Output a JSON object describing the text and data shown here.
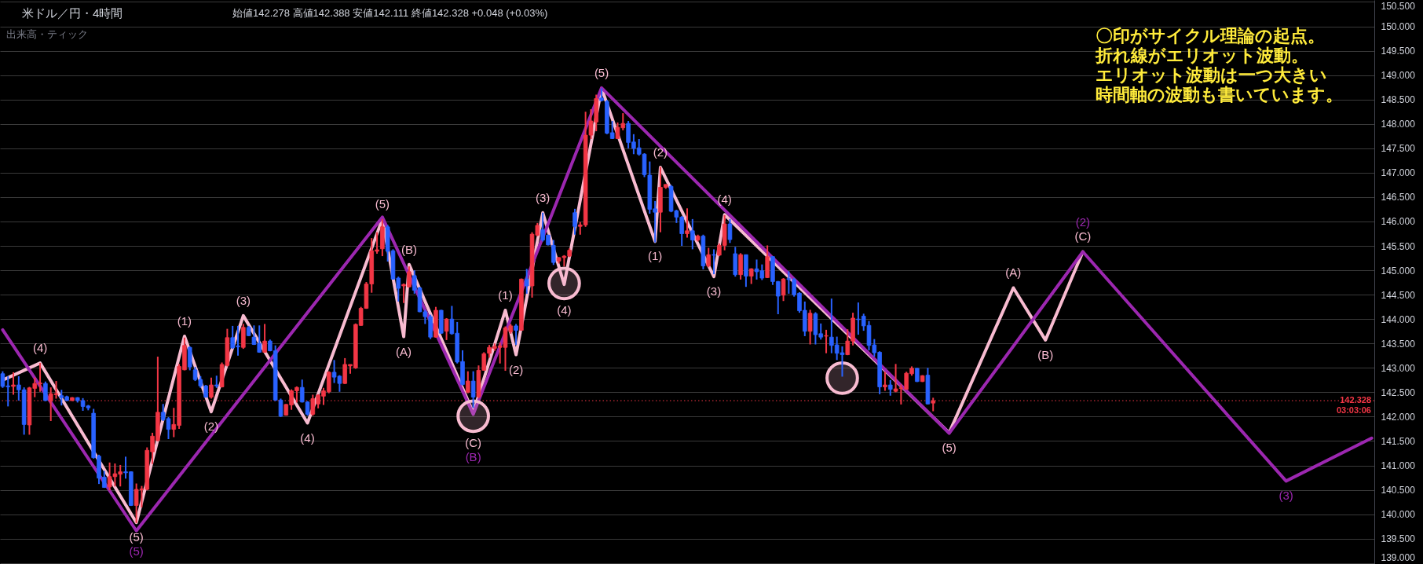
{
  "chart_data": {
    "type": "candlestick",
    "title": "米ドル／円・4時間",
    "subtitle": "始値142.278 高値142.388 安値142.111 終値142.328 +0.048 (+0.03%)",
    "categories": [
      null,
      null,
      null,
      null,
      null,
      null,
      null,
      null,
      null,
      null,
      null,
      null,
      null,
      null,
      null,
      null,
      null,
      null,
      null,
      null,
      null,
      null,
      null,
      null,
      null,
      null,
      null,
      null,
      null,
      null,
      null,
      null,
      null,
      null,
      null,
      null,
      null,
      null,
      null,
      null,
      null,
      null,
      null,
      null,
      null,
      null,
      null,
      null,
      null,
      null,
      null,
      null,
      null,
      null,
      null,
      null,
      null,
      null,
      null,
      null,
      null,
      null,
      null,
      null,
      null,
      null,
      null,
      null,
      null,
      null,
      null,
      null,
      null,
      null,
      null,
      null,
      null,
      null,
      null,
      null,
      null,
      null,
      null,
      null,
      null,
      null,
      null,
      null,
      null,
      null,
      null,
      null,
      null,
      null,
      null,
      null,
      null,
      null,
      null,
      null,
      null,
      null,
      null,
      null,
      null,
      null,
      null,
      null,
      null,
      null,
      null,
      null,
      null,
      null,
      null,
      null,
      null,
      null,
      null,
      null,
      null,
      null,
      null,
      null,
      null,
      null,
      null,
      null,
      null,
      null,
      null,
      null,
      null,
      null,
      null,
      null,
      null,
      null,
      null,
      null,
      null,
      null,
      null,
      null,
      null,
      null,
      null,
      null,
      null,
      null,
      null,
      null,
      null,
      null,
      null,
      null,
      null,
      null,
      null,
      null,
      null,
      null,
      null,
      null,
      null,
      null,
      null,
      null,
      null,
      null,
      null,
      null,
      null,
      null,
      null,
      null,
      null,
      null,
      null,
      null,
      null,
      null,
      null,
      null,
      null,
      null,
      null,
      null,
      null,
      null,
      null,
      null,
      null,
      null,
      null,
      null,
      null,
      null,
      null,
      null,
      null,
      null,
      null,
      null,
      null,
      null,
      null,
      null,
      null,
      null,
      null,
      null,
      null,
      null,
      null,
      null,
      null,
      null,
      null,
      null,
      null,
      null,
      null,
      null,
      null,
      null,
      null,
      null,
      null,
      null,
      null,
      null,
      null,
      null,
      null,
      null,
      null,
      null,
      null,
      null,
      null,
      null,
      null,
      null,
      null,
      null,
      null,
      null,
      null,
      null,
      null,
      null,
      null,
      null,
      null,
      null,
      null
    ],
    "ohlc": [
      [
        142.88,
        142.93,
        142.59,
        142.62
      ],
      [
        142.63,
        142.83,
        142.21,
        142.61
      ],
      [
        142.62,
        142.91,
        142.45,
        142.65
      ],
      [
        142.65,
        142.83,
        142.33,
        142.55
      ],
      [
        142.55,
        142.6,
        141.63,
        141.84
      ],
      [
        141.83,
        142.61,
        141.63,
        142.59
      ],
      [
        142.58,
        142.8,
        142.4,
        142.68
      ],
      [
        142.67,
        143.1,
        142.51,
        142.69
      ],
      [
        142.68,
        142.72,
        142.32,
        142.33
      ],
      [
        142.32,
        142.6,
        141.91,
        142.47
      ],
      [
        142.45,
        142.73,
        142.37,
        142.47
      ],
      [
        142.43,
        142.55,
        142.23,
        142.39
      ],
      [
        142.41,
        142.43,
        142.32,
        142.33
      ],
      [
        142.33,
        142.4,
        142.32,
        142.39
      ],
      [
        142.39,
        142.4,
        142.29,
        142.33
      ],
      [
        142.33,
        142.38,
        142.12,
        142.21
      ],
      [
        142.22,
        142.24,
        142.13,
        142.18
      ],
      [
        142.07,
        142.16,
        141.14,
        141.16
      ],
      [
        141.19,
        141.22,
        140.62,
        140.74
      ],
      [
        140.76,
        140.89,
        140.54,
        140.55
      ],
      [
        140.56,
        141.06,
        140.49,
        140.77
      ],
      [
        140.77,
        141.04,
        140.57,
        140.83
      ],
      [
        140.82,
        141.01,
        140.57,
        140.87
      ],
      [
        140.87,
        141.18,
        140.73,
        140.85
      ],
      [
        140.87,
        140.88,
        140.17,
        140.18
      ],
      [
        140.18,
        140.63,
        139.82,
        140.51
      ],
      [
        140.5,
        140.58,
        140.14,
        140.52
      ],
      [
        140.51,
        141.37,
        140.49,
        141.31
      ],
      [
        141.28,
        141.67,
        141.03,
        141.6
      ],
      [
        141.51,
        143.23,
        141.5,
        142.09
      ],
      [
        142.09,
        142.26,
        141.91,
        141.94
      ],
      [
        141.96,
        141.99,
        141.54,
        141.74
      ],
      [
        141.74,
        142.18,
        141.58,
        141.84
      ],
      [
        141.82,
        143.08,
        141.75,
        143.03
      ],
      [
        142.96,
        143.62,
        142.95,
        143.46
      ],
      [
        143.42,
        143.44,
        142.95,
        143.02
      ],
      [
        142.96,
        143.02,
        142.73,
        142.76
      ],
      [
        142.76,
        142.83,
        142.59,
        142.63
      ],
      [
        142.63,
        142.65,
        142.39,
        142.4
      ],
      [
        142.4,
        142.8,
        142.37,
        142.65
      ],
      [
        142.65,
        142.84,
        142.59,
        142.63
      ],
      [
        142.61,
        143.11,
        142.6,
        143.07
      ],
      [
        143.05,
        143.8,
        143.03,
        143.62
      ],
      [
        143.62,
        143.86,
        143.39,
        143.41
      ],
      [
        143.45,
        143.86,
        143.25,
        143.43
      ],
      [
        143.42,
        143.9,
        143.39,
        143.83
      ],
      [
        143.83,
        143.86,
        143.65,
        143.66
      ],
      [
        143.63,
        143.87,
        143.47,
        143.48
      ],
      [
        143.5,
        143.87,
        143.31,
        143.32
      ],
      [
        143.32,
        143.9,
        143.31,
        143.55
      ],
      [
        143.55,
        143.58,
        143.34,
        143.35
      ],
      [
        143.35,
        143.46,
        142.32,
        142.34
      ],
      [
        142.34,
        142.37,
        141.99,
        142.01
      ],
      [
        142.03,
        142.26,
        142.02,
        142.25
      ],
      [
        142.24,
        142.56,
        142.14,
        142.53
      ],
      [
        142.53,
        142.62,
        142.29,
        142.6
      ],
      [
        142.6,
        142.76,
        142.29,
        142.3
      ],
      [
        142.3,
        142.32,
        142.02,
        142.05
      ],
      [
        142.05,
        142.45,
        142.02,
        142.37
      ],
      [
        142.26,
        142.46,
        142.17,
        142.44
      ],
      [
        142.42,
        142.59,
        142.24,
        142.53
      ],
      [
        142.51,
        142.93,
        142.48,
        142.91
      ],
      [
        142.91,
        143.16,
        142.69,
        142.81
      ],
      [
        142.83,
        142.85,
        142.51,
        142.68
      ],
      [
        142.68,
        143.2,
        142.67,
        143.07
      ],
      [
        143.04,
        143.07,
        142.88,
        143.07
      ],
      [
        143.0,
        143.91,
        142.98,
        143.89
      ],
      [
        143.87,
        144.25,
        143.86,
        144.22
      ],
      [
        144.22,
        144.76,
        144.21,
        144.72
      ],
      [
        144.72,
        145.66,
        144.54,
        145.4
      ],
      [
        145.39,
        145.78,
        145.34,
        145.42
      ],
      [
        145.44,
        146.05,
        145.29,
        145.89
      ],
      [
        145.89,
        145.93,
        145.18,
        145.39
      ],
      [
        145.4,
        145.43,
        144.81,
        144.82
      ],
      [
        144.84,
        144.87,
        144.36,
        144.63
      ],
      [
        144.68,
        144.73,
        144.33,
        144.71
      ],
      [
        144.66,
        145.08,
        144.65,
        144.97
      ],
      [
        144.89,
        145.0,
        144.52,
        144.59
      ],
      [
        144.64,
        144.66,
        144.14,
        144.15
      ],
      [
        144.15,
        144.19,
        143.9,
        144.05
      ],
      [
        144.05,
        144.09,
        143.59,
        143.63
      ],
      [
        143.63,
        144.25,
        143.62,
        144.18
      ],
      [
        144.18,
        144.19,
        143.7,
        143.71
      ],
      [
        143.75,
        144.02,
        143.57,
        144.0
      ],
      [
        144.0,
        144.27,
        143.68,
        143.7
      ],
      [
        143.71,
        143.94,
        143.09,
        143.12
      ],
      [
        143.13,
        143.36,
        142.64,
        142.66
      ],
      [
        142.5,
        142.93,
        142.48,
        142.73
      ],
      [
        142.73,
        142.93,
        142.18,
        142.4
      ],
      [
        142.41,
        143.05,
        142.38,
        142.95
      ],
      [
        142.95,
        143.32,
        142.94,
        143.29
      ],
      [
        143.3,
        143.47,
        143.21,
        143.42
      ],
      [
        143.4,
        143.5,
        143.35,
        143.44
      ],
      [
        143.42,
        143.52,
        143.09,
        143.45
      ],
      [
        143.42,
        143.85,
        142.94,
        143.82
      ],
      [
        143.74,
        143.9,
        143.7,
        143.86
      ],
      [
        143.86,
        143.9,
        143.47,
        143.77
      ],
      [
        143.77,
        144.83,
        143.76,
        144.82
      ],
      [
        144.82,
        145.03,
        144.52,
        144.68
      ],
      [
        144.68,
        145.78,
        144.44,
        145.74
      ],
      [
        145.72,
        145.97,
        145.7,
        145.92
      ],
      [
        145.83,
        146.18,
        145.59,
        145.62
      ],
      [
        145.72,
        145.73,
        145.51,
        145.52
      ],
      [
        145.51,
        145.62,
        145.11,
        145.16
      ],
      [
        145.19,
        145.27,
        145.14,
        145.26
      ],
      [
        145.26,
        145.31,
        145.08,
        145.29
      ],
      [
        145.29,
        145.45,
        145.27,
        145.41
      ],
      [
        146.18,
        146.26,
        145.73,
        145.9
      ],
      [
        145.9,
        145.99,
        145.73,
        145.93
      ],
      [
        145.93,
        148.25,
        145.89,
        147.77
      ],
      [
        147.77,
        148.3,
        147.69,
        148.06
      ],
      [
        148.04,
        148.6,
        147.85,
        148.52
      ],
      [
        148.53,
        148.73,
        148.46,
        148.48
      ],
      [
        148.46,
        148.49,
        147.79,
        147.81
      ],
      [
        147.82,
        148.06,
        147.69,
        147.7
      ],
      [
        147.7,
        148.03,
        147.69,
        147.93
      ],
      [
        147.92,
        148.22,
        147.87,
        148.01
      ],
      [
        148.01,
        148.06,
        147.5,
        147.62
      ],
      [
        147.63,
        147.79,
        147.38,
        147.5
      ],
      [
        147.51,
        147.69,
        147.35,
        147.38
      ],
      [
        147.38,
        147.4,
        146.91,
        146.96
      ],
      [
        146.95,
        147.23,
        146.16,
        146.25
      ],
      [
        146.26,
        146.42,
        145.57,
        146.19
      ],
      [
        146.19,
        147.12,
        145.78,
        146.7
      ],
      [
        146.7,
        146.76,
        146.67,
        146.76
      ],
      [
        146.72,
        146.75,
        146.19,
        146.21
      ],
      [
        146.22,
        146.24,
        145.97,
        146.09
      ],
      [
        146.09,
        146.11,
        145.5,
        145.75
      ],
      [
        145.75,
        146.27,
        145.67,
        145.81
      ],
      [
        145.81,
        146.05,
        145.43,
        145.62
      ],
      [
        145.62,
        145.73,
        145.59,
        145.7
      ],
      [
        145.7,
        145.73,
        145.02,
        145.09
      ],
      [
        145.09,
        145.46,
        145.06,
        145.32
      ],
      [
        145.32,
        145.43,
        144.92,
        145.31
      ],
      [
        145.31,
        145.55,
        145.29,
        145.51
      ],
      [
        145.51,
        146.13,
        145.41,
        145.95
      ],
      [
        145.95,
        146.05,
        145.56,
        145.63
      ],
      [
        145.34,
        145.48,
        144.87,
        144.91
      ],
      [
        144.91,
        145.35,
        144.81,
        145.32
      ],
      [
        145.32,
        145.32,
        144.66,
        144.88
      ],
      [
        144.88,
        145.04,
        144.72,
        145.03
      ],
      [
        145.03,
        145.22,
        144.81,
        144.97
      ],
      [
        144.99,
        145.12,
        144.8,
        144.84
      ],
      [
        144.85,
        145.51,
        144.84,
        145.28
      ],
      [
        145.28,
        145.29,
        144.7,
        144.77
      ],
      [
        144.77,
        144.78,
        144.1,
        144.47
      ],
      [
        144.49,
        144.84,
        144.37,
        144.82
      ],
      [
        144.83,
        144.98,
        144.52,
        144.81
      ],
      [
        144.81,
        144.84,
        144.46,
        144.5
      ],
      [
        144.53,
        144.55,
        144.13,
        144.17
      ],
      [
        144.18,
        144.36,
        143.65,
        143.75
      ],
      [
        143.75,
        144.19,
        143.48,
        144.12
      ],
      [
        144.11,
        144.14,
        143.48,
        143.68
      ],
      [
        143.7,
        143.91,
        143.58,
        143.63
      ],
      [
        143.65,
        143.78,
        143.3,
        143.66
      ],
      [
        143.63,
        144.42,
        143.3,
        143.46
      ],
      [
        143.47,
        143.64,
        143.16,
        143.3
      ],
      [
        143.31,
        143.44,
        142.82,
        143.27
      ],
      [
        143.27,
        143.79,
        143.26,
        143.55
      ],
      [
        143.55,
        144.13,
        143.46,
        144.02
      ],
      [
        144.0,
        144.34,
        143.68,
        143.99
      ],
      [
        144.06,
        144.11,
        143.76,
        143.86
      ],
      [
        143.87,
        143.96,
        143.36,
        143.46
      ],
      [
        143.47,
        143.59,
        143.23,
        143.31
      ],
      [
        143.32,
        143.34,
        142.46,
        142.61
      ],
      [
        142.61,
        142.92,
        142.53,
        142.65
      ],
      [
        142.65,
        142.75,
        142.43,
        142.56
      ],
      [
        142.52,
        143.08,
        142.5,
        142.57
      ],
      [
        142.58,
        142.66,
        142.25,
        142.59
      ],
      [
        142.56,
        142.92,
        142.55,
        142.89
      ],
      [
        142.88,
        143.03,
        142.84,
        142.99
      ],
      [
        142.99,
        143.0,
        142.71,
        142.72
      ],
      [
        142.72,
        142.85,
        142.71,
        142.84
      ],
      [
        142.85,
        143.0,
        142.25,
        142.26
      ],
      [
        142.278,
        142.388,
        142.111,
        142.328
      ],
      null,
      null,
      null,
      null,
      null,
      null,
      null,
      null,
      null,
      null,
      null,
      null,
      null,
      null,
      null,
      null,
      null,
      null,
      null,
      null,
      null,
      null,
      null,
      null,
      null,
      null,
      null,
      null,
      null,
      null,
      null,
      null,
      null,
      null,
      null,
      null,
      null,
      null,
      null,
      null,
      null,
      null,
      null,
      null,
      null,
      null,
      null,
      null,
      null,
      null,
      null,
      null,
      null,
      null,
      null,
      null,
      null,
      null,
      null,
      null,
      null,
      null,
      null,
      null,
      null,
      null,
      null,
      null,
      null,
      null,
      null,
      null,
      null,
      null,
      null,
      null,
      null,
      null,
      null,
      null,
      null,
      null
    ],
    "colors": [
      "#2962ff",
      "#2962ff",
      "#f23645",
      "#2962ff",
      "#2962ff",
      "#f23645",
      "#f23645",
      "#f23645",
      "#2962ff",
      "#f23645",
      "#f23645",
      "#2962ff",
      "#2962ff",
      "#f23645",
      "#2962ff",
      "#2962ff",
      "#2962ff",
      "#2962ff",
      "#2962ff",
      "#2962ff",
      "#f23645",
      "#f23645",
      "#f23645",
      "#2962ff",
      "#2962ff",
      "#f23645",
      "#f23645",
      "#f23645",
      "#f23645",
      "#f23645",
      "#2962ff",
      "#2962ff",
      "#f23645",
      "#f23645",
      "#f23645",
      "#2962ff",
      "#2962ff",
      "#2962ff",
      "#2962ff",
      "#f23645",
      "#2962ff",
      "#f23645",
      "#f23645",
      "#2962ff",
      "#2962ff",
      "#f23645",
      "#2962ff",
      "#2962ff",
      "#2962ff",
      "#f23645",
      "#2962ff",
      "#2962ff",
      "#2962ff",
      "#f23645",
      "#f23645",
      "#f23645",
      "#2962ff",
      "#2962ff",
      "#f23645",
      "#f23645",
      "#f23645",
      "#f23645",
      "#2962ff",
      "#2962ff",
      "#f23645",
      "#f23645",
      "#f23645",
      "#f23645",
      "#f23645",
      "#f23645",
      "#f23645",
      "#f23645",
      "#2962ff",
      "#2962ff",
      "#2962ff",
      "#f23645",
      "#f23645",
      "#2962ff",
      "#2962ff",
      "#2962ff",
      "#2962ff",
      "#f23645",
      "#2962ff",
      "#f23645",
      "#2962ff",
      "#2962ff",
      "#2962ff",
      "#f23645",
      "#2962ff",
      "#f23645",
      "#f23645",
      "#f23645",
      "#f23645",
      "#f23645",
      "#f23645",
      "#f23645",
      "#2962ff",
      "#f23645",
      "#2962ff",
      "#f23645",
      "#f23645",
      "#2962ff",
      "#2962ff",
      "#2962ff",
      "#f23645",
      "#f23645",
      "#f23645",
      "#2962ff",
      "#f23645",
      "#f23645",
      "#f23645",
      "#f23645",
      "#2962ff",
      "#2962ff",
      "#2962ff",
      "#f23645",
      "#f23645",
      "#2962ff",
      "#2962ff",
      "#2962ff",
      "#2962ff",
      "#2962ff",
      "#2962ff",
      "#f23645",
      "#f23645",
      "#2962ff",
      "#2962ff",
      "#2962ff",
      "#f23645",
      "#2962ff",
      "#f23645",
      "#2962ff",
      "#f23645",
      "#2962ff",
      "#f23645",
      "#f23645",
      "#2962ff",
      "#2962ff",
      "#f23645",
      "#2962ff",
      "#f23645",
      "#2962ff",
      "#2962ff",
      "#f23645",
      "#2962ff",
      "#2962ff",
      "#f23645",
      "#2962ff",
      "#2962ff",
      "#2962ff",
      "#2962ff",
      "#f23645",
      "#2962ff",
      "#2962ff",
      "#f23645",
      "#2962ff",
      "#2962ff",
      "#2962ff",
      "#f23645",
      "#f23645",
      "#2962ff",
      "#2962ff",
      "#2962ff",
      "#2962ff",
      "#2962ff",
      "#f23645",
      "#2962ff",
      "#f23645",
      "#f23645",
      "#f23645",
      "#f23645",
      "#2962ff",
      "#f23645",
      "#2962ff",
      "#f23645",
      null,
      null,
      null,
      null,
      null,
      null,
      null,
      null,
      null,
      null,
      null,
      null,
      null,
      null,
      null,
      null,
      null,
      null,
      null,
      null,
      null,
      null,
      null,
      null,
      null,
      null,
      null,
      null,
      null,
      null,
      null,
      null,
      null,
      null,
      null,
      null,
      null,
      null,
      null,
      null,
      null,
      null,
      null,
      null,
      null,
      null,
      null,
      null,
      null,
      null,
      null,
      null,
      null,
      null,
      null,
      null,
      null,
      null,
      null,
      null,
      null,
      null,
      null,
      null,
      null,
      null,
      null,
      null,
      null,
      null,
      null,
      null,
      null,
      null,
      null,
      null,
      null,
      null,
      null,
      null,
      null,
      null
    ],
    "series": [
      {
        "type": "line",
        "color": "#f8bbd0",
        "values": [
          142.75,
          null,
          null,
          null,
          null,
          null,
          null,
          143.1,
          null,
          null,
          null,
          null,
          null,
          null,
          null,
          null,
          null,
          null,
          null,
          null,
          null,
          null,
          null,
          null,
          null,
          139.83,
          null,
          null,
          null,
          null,
          null,
          null,
          null,
          null,
          143.65,
          null,
          null,
          null,
          null,
          142.1,
          null,
          null,
          null,
          null,
          null,
          144.07,
          null,
          null,
          null,
          null,
          null,
          null,
          null,
          null,
          null,
          null,
          null,
          141.87,
          null,
          null,
          null,
          null,
          null,
          null,
          null,
          null,
          null,
          null,
          null,
          null,
          null,
          146.05,
          null,
          null,
          null,
          143.64,
          145.12,
          null,
          null,
          null,
          null,
          null,
          null,
          null,
          null,
          null,
          null,
          null,
          142.08,
          null,
          null,
          null,
          null,
          null,
          144.18,
          null,
          143.27,
          null,
          null,
          null,
          null,
          146.18,
          null,
          null,
          null,
          144.71,
          null,
          null,
          null,
          null,
          null,
          null,
          148.73,
          null,
          null,
          null,
          null,
          null,
          null,
          null,
          null,
          null,
          145.59,
          147.11,
          null,
          null,
          null,
          null,
          null,
          null,
          null,
          null,
          null,
          144.87,
          null,
          146.14,
          null,
          null,
          null,
          null,
          null,
          null,
          null,
          null,
          null,
          null,
          null,
          null,
          null,
          null,
          null,
          null,
          null,
          null,
          null,
          null,
          null,
          null,
          null,
          null,
          null,
          null,
          null,
          null,
          null,
          null,
          null,
          null,
          null,
          null,
          null,
          null,
          null,
          null,
          null,
          null,
          null,
          141.67,
          null,
          null,
          null,
          null,
          null,
          null,
          null,
          null,
          null,
          null,
          null,
          144.64,
          null,
          null,
          null,
          null,
          null,
          143.57,
          null,
          null,
          null,
          null,
          null,
          null,
          145.38,
          null,
          null,
          null,
          null,
          null,
          null,
          null,
          null,
          null,
          null,
          null,
          null,
          null,
          null,
          null,
          null,
          null,
          null,
          null,
          null,
          null,
          null,
          null,
          null,
          null,
          null,
          null,
          null,
          null,
          null,
          null,
          null,
          null,
          null,
          null,
          null,
          null,
          null,
          null,
          null,
          null,
          null,
          null,
          null,
          null,
          null,
          null,
          null,
          null,
          null,
          null,
          null,
          null,
          null
        ]
      },
      {
        "type": "line",
        "color": "#9c27b0",
        "values": [
          143.78,
          null,
          null,
          null,
          null,
          null,
          null,
          null,
          null,
          null,
          null,
          null,
          null,
          null,
          null,
          null,
          null,
          null,
          null,
          null,
          null,
          null,
          null,
          null,
          null,
          139.66,
          null,
          null,
          null,
          null,
          null,
          null,
          null,
          null,
          null,
          null,
          null,
          null,
          null,
          null,
          null,
          null,
          null,
          null,
          null,
          null,
          null,
          null,
          null,
          null,
          null,
          null,
          null,
          null,
          null,
          null,
          null,
          null,
          null,
          null,
          null,
          null,
          null,
          null,
          null,
          null,
          null,
          null,
          null,
          null,
          null,
          146.09,
          null,
          null,
          null,
          null,
          null,
          null,
          null,
          null,
          null,
          null,
          null,
          null,
          null,
          null,
          null,
          null,
          142.05,
          null,
          null,
          null,
          null,
          null,
          null,
          null,
          null,
          null,
          null,
          null,
          null,
          null,
          null,
          null,
          null,
          null,
          null,
          null,
          null,
          null,
          null,
          null,
          148.74,
          null,
          null,
          null,
          null,
          null,
          null,
          null,
          null,
          null,
          null,
          null,
          null,
          null,
          null,
          null,
          null,
          null,
          null,
          null,
          null,
          null,
          null,
          null,
          null,
          null,
          null,
          null,
          null,
          null,
          null,
          null,
          null,
          null,
          null,
          null,
          null,
          null,
          null,
          null,
          null,
          null,
          null,
          null,
          null,
          null,
          null,
          null,
          null,
          null,
          null,
          null,
          null,
          null,
          null,
          null,
          null,
          null,
          null,
          null,
          null,
          null,
          null,
          null,
          null,
          141.66,
          null,
          null,
          null,
          null,
          null,
          null,
          null,
          null,
          null,
          null,
          null,
          null,
          null,
          null,
          null,
          null,
          null,
          null,
          null,
          null,
          null,
          null,
          null,
          null,
          145.38,
          null,
          null,
          null,
          null,
          null,
          null,
          null,
          null,
          null,
          null,
          null,
          null,
          null,
          null,
          null,
          null,
          null,
          null,
          null,
          null,
          null,
          null,
          null,
          null,
          null,
          null,
          null,
          null,
          null,
          null,
          null,
          null,
          null,
          null,
          null,
          null,
          null,
          140.68,
          null,
          null,
          null,
          null,
          null,
          null,
          null,
          null,
          null,
          null,
          null,
          null,
          null,
          null,
          null,
          141.56
        ]
      },
      {
        "type": "scatter",
        "color": "#f8bbd0",
        "marker": "circle",
        "values": [
          null,
          null,
          null,
          null,
          null,
          null,
          null,
          null,
          null,
          null,
          null,
          null,
          null,
          null,
          null,
          null,
          null,
          null,
          null,
          null,
          null,
          null,
          null,
          null,
          null,
          null,
          null,
          null,
          null,
          null,
          null,
          null,
          null,
          null,
          null,
          null,
          null,
          null,
          null,
          null,
          null,
          null,
          null,
          null,
          null,
          null,
          null,
          null,
          null,
          null,
          null,
          null,
          null,
          null,
          null,
          null,
          null,
          null,
          null,
          null,
          null,
          null,
          null,
          null,
          null,
          null,
          null,
          null,
          null,
          null,
          null,
          null,
          null,
          null,
          null,
          null,
          null,
          null,
          null,
          null,
          null,
          null,
          null,
          null,
          null,
          null,
          null,
          null,
          142.01,
          null,
          null,
          null,
          null,
          null,
          null,
          null,
          null,
          null,
          null,
          null,
          null,
          null,
          null,
          null,
          null,
          144.73,
          null,
          null,
          null,
          null,
          null,
          null,
          null,
          null,
          null,
          null,
          null,
          null,
          null,
          null,
          null,
          null,
          null,
          null,
          null,
          null,
          null,
          null,
          null,
          null,
          null,
          null,
          null,
          null,
          null,
          null,
          null,
          null,
          null,
          null,
          null,
          null,
          null,
          null,
          null,
          null,
          null,
          null,
          null,
          null,
          null,
          null,
          null,
          null,
          null,
          null,
          null,
          142.79,
          null,
          null,
          null,
          null,
          null,
          null,
          null,
          null,
          null,
          null,
          null,
          null,
          null,
          null,
          null,
          null,
          null,
          null,
          null,
          null,
          null,
          null,
          null,
          null,
          null,
          null,
          null,
          null,
          null,
          null,
          null,
          null,
          null,
          null,
          null,
          null,
          null,
          null,
          null,
          null,
          null,
          null,
          null,
          null,
          null,
          null,
          null,
          null,
          null,
          null,
          null,
          null,
          null,
          null,
          null,
          null,
          null,
          null,
          null,
          null,
          null,
          null,
          null,
          null,
          null,
          null,
          null,
          null,
          null,
          null,
          null,
          null,
          null,
          null,
          null,
          null,
          null,
          null,
          null,
          null,
          null,
          null,
          null,
          null,
          null,
          null,
          null,
          null,
          null,
          null,
          null,
          null,
          null,
          null,
          null,
          null,
          null,
          null,
          null
        ]
      }
    ],
    "ylim": [
      138.98,
      150.54
    ],
    "yticks": [
      {
        "value": 139.0,
        "label": "139.000"
      },
      {
        "value": 139.5,
        "label": "139.500"
      },
      {
        "value": 140.0,
        "label": "140.000"
      },
      {
        "value": 140.5,
        "label": "140.500"
      },
      {
        "value": 141.0,
        "label": "141.000"
      },
      {
        "value": 141.5,
        "label": "141.500"
      },
      {
        "value": 142.0,
        "label": "142.000"
      },
      {
        "value": 142.5,
        "label": "142.500"
      },
      {
        "value": 143.0,
        "label": "143.000"
      },
      {
        "value": 143.5,
        "label": "143.500"
      },
      {
        "value": 144.0,
        "label": "144.000"
      },
      {
        "value": 144.5,
        "label": "144.500"
      },
      {
        "value": 145.0,
        "label": "145.000"
      },
      {
        "value": 145.5,
        "label": "145.500"
      },
      {
        "value": 146.0,
        "label": "146.000"
      },
      {
        "value": 146.5,
        "label": "146.500"
      },
      {
        "value": 147.0,
        "label": "147.000"
      },
      {
        "value": 147.5,
        "label": "147.500"
      },
      {
        "value": 148.0,
        "label": "148.000"
      },
      {
        "value": 148.5,
        "label": "148.500"
      },
      {
        "value": 149.0,
        "label": "149.000"
      },
      {
        "value": 149.5,
        "label": "149.500"
      },
      {
        "value": 150.0,
        "label": "150.000"
      },
      {
        "value": 150.5,
        "label": "150.500"
      }
    ],
    "grid": "y",
    "tick_labels": "y",
    "ref_lines": [
      {
        "axis": "y",
        "value": 142.328,
        "label": "142.328\n03:03:06",
        "color": "#f23645",
        "line_style": "dotted"
      }
    ],
    "annotations": [
      "出来高・ティック",
      "〇印がサイクル理論の起点。",
      "折れ線がエリオット波動。",
      "エリオット波動は一つ大きい",
      "時間軸の波動も書いています。",
      {
        "text": "(4)",
        "y": 143.1
      },
      {
        "text": "(5)",
        "y": 139.83
      },
      {
        "text": "(1)",
        "y": 143.65
      },
      {
        "text": "(2)",
        "y": 142.1
      },
      {
        "text": "(3)",
        "y": 144.07
      },
      {
        "text": "(4)",
        "y": 141.87
      },
      {
        "text": "(5)",
        "y": 146.05
      },
      {
        "text": "(A)",
        "y": 143.64
      },
      {
        "text": "(B)",
        "y": 145.12
      },
      {
        "text": "(C)",
        "y": 142.08
      },
      {
        "text": "(1)",
        "y": 144.18
      },
      {
        "text": "(2)",
        "y": 143.27
      },
      {
        "text": "(3)",
        "y": 146.18
      },
      {
        "text": "(4)",
        "y": 144.71
      },
      {
        "text": "(5)",
        "y": 148.73
      },
      {
        "text": "(1)",
        "y": 145.59
      },
      {
        "text": "(2)",
        "y": 147.11
      },
      {
        "text": "(3)",
        "y": 144.87
      },
      {
        "text": "(4)",
        "y": 146.14
      },
      {
        "text": "(5)",
        "y": 141.67
      },
      {
        "text": "(A)",
        "y": 144.64
      },
      {
        "text": "(B)",
        "y": 143.57
      },
      {
        "text": "(C)",
        "y": 145.38
      },
      {
        "text": "(5)",
        "y": 139.66
      },
      {
        "text": "(B)",
        "y": 142.05
      },
      {
        "text": "(2)",
        "y": 145.38
      },
      {
        "text": "(3)",
        "y": 140.68
      }
    ]
  }
}
